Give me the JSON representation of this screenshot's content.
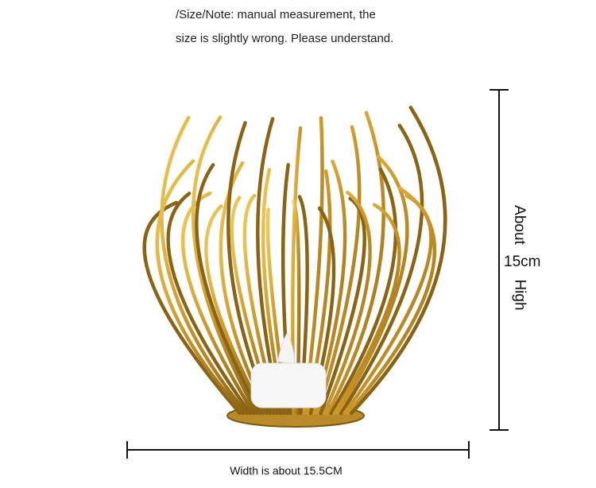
{
  "note": {
    "line1": "/Size/Note: manual measurement, the",
    "line2": "size is slightly wrong. Please understand."
  },
  "height_label": {
    "about": "About",
    "value": "15cm",
    "high": "High"
  },
  "width_label": "Width is about 15.5CM"
}
